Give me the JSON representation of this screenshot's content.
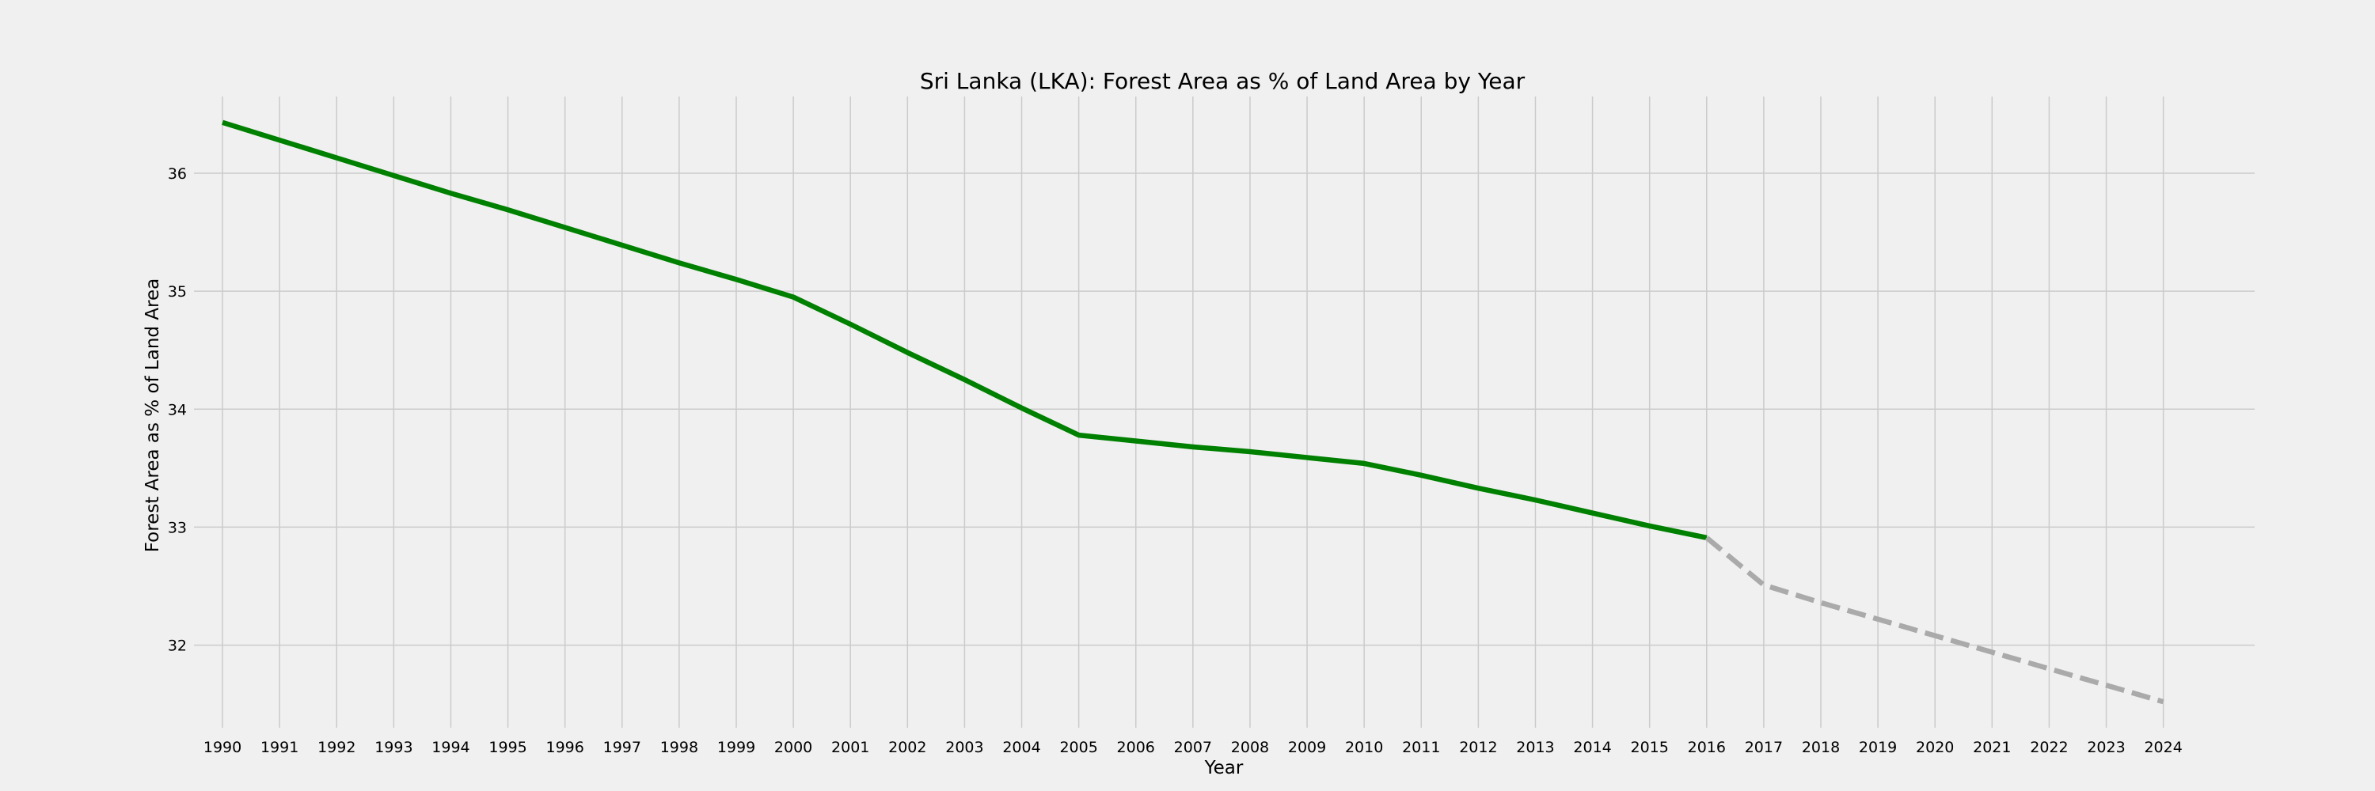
{
  "chart_data": {
    "type": "line",
    "title": "Sri Lanka (LKA): Forest Area as % of Land Area by Year",
    "xlabel": "Year",
    "ylabel": "Forest Area as % of Land Area",
    "x": [
      1990,
      1991,
      1992,
      1993,
      1994,
      1995,
      1996,
      1997,
      1998,
      1999,
      2000,
      2001,
      2002,
      2003,
      2004,
      2005,
      2006,
      2007,
      2008,
      2009,
      2010,
      2011,
      2012,
      2013,
      2014,
      2015,
      2016,
      2017,
      2018,
      2019,
      2020,
      2021,
      2022,
      2023,
      2024
    ],
    "xlim": [
      1989.5,
      2025.6
    ],
    "ylim": [
      31.3,
      36.65
    ],
    "yticks": [
      32,
      33,
      34,
      35,
      36
    ],
    "grid": true,
    "series": [
      {
        "style": "solid",
        "color": "#008000",
        "x": [
          1990,
          1991,
          1992,
          1993,
          1994,
          1995,
          1996,
          1997,
          1998,
          1999,
          2000,
          2001,
          2002,
          2003,
          2004,
          2005,
          2006,
          2007,
          2008,
          2009,
          2010,
          2011,
          2012,
          2013,
          2014,
          2015,
          2016
        ],
        "values": [
          36.43,
          36.28,
          36.13,
          35.98,
          35.83,
          35.69,
          35.54,
          35.39,
          35.24,
          35.1,
          34.95,
          34.72,
          34.48,
          34.25,
          34.01,
          33.78,
          33.73,
          33.68,
          33.64,
          33.59,
          33.54,
          33.44,
          33.33,
          33.23,
          33.12,
          33.01,
          32.91
        ]
      },
      {
        "style": "dashed",
        "color": "#aaaaaa",
        "x": [
          2016,
          2017,
          2018,
          2019,
          2020,
          2021,
          2022,
          2023,
          2024
        ],
        "values": [
          32.91,
          32.51,
          32.36,
          32.22,
          32.08,
          31.94,
          31.8,
          31.66,
          31.52
        ]
      }
    ]
  }
}
